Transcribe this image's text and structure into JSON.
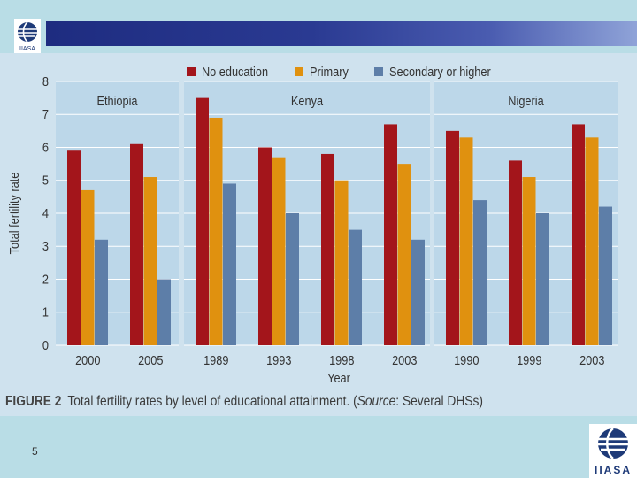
{
  "header": {
    "logo_icon": "iiasa-globe-icon",
    "colors": {
      "bar_start": "#1e2c80",
      "bar_end": "#8fa3d8",
      "background": "#b9dde6"
    }
  },
  "figure": {
    "label": "FIGURE 2",
    "caption_main": "Total fertility rates by level of educational attainment. (",
    "caption_source_label": "Source",
    "caption_source_rest": ": Several DHSs)"
  },
  "chart_data": {
    "type": "bar",
    "ylabel": "Total fertility rate",
    "xlabel": "Year",
    "ylim": [
      0,
      8
    ],
    "yticks": [
      "0",
      "1",
      "2",
      "3",
      "4",
      "5",
      "6",
      "7",
      "8"
    ],
    "legend": [
      {
        "name": "No education",
        "color": "#a3151b"
      },
      {
        "name": "Primary",
        "color": "#e0910f"
      },
      {
        "name": "Secondary or higher",
        "color": "#5d7ea8"
      }
    ],
    "panels": [
      {
        "country": "Ethiopia",
        "categories": [
          "2000",
          "2005"
        ],
        "series": [
          {
            "name": "No education",
            "values": [
              5.9,
              6.1
            ]
          },
          {
            "name": "Primary",
            "values": [
              4.7,
              5.1
            ]
          },
          {
            "name": "Secondary or higher",
            "values": [
              3.2,
              2.0
            ]
          }
        ]
      },
      {
        "country": "Kenya",
        "categories": [
          "1989",
          "1993",
          "1998",
          "2003"
        ],
        "series": [
          {
            "name": "No education",
            "values": [
              7.5,
              6.0,
              5.8,
              6.7
            ]
          },
          {
            "name": "Primary",
            "values": [
              6.9,
              5.7,
              5.0,
              5.5
            ]
          },
          {
            "name": "Secondary or higher",
            "values": [
              4.9,
              4.0,
              3.5,
              3.2
            ]
          }
        ]
      },
      {
        "country": "Nigeria",
        "categories": [
          "1990",
          "1999",
          "2003"
        ],
        "series": [
          {
            "name": "No education",
            "values": [
              6.5,
              5.6,
              6.7
            ]
          },
          {
            "name": "Primary",
            "values": [
              6.3,
              5.1,
              6.3
            ]
          },
          {
            "name": "Secondary or higher",
            "values": [
              4.4,
              4.0,
              4.2
            ]
          }
        ]
      }
    ]
  },
  "footer": {
    "page_number": "5",
    "logo_text": "IIASA",
    "logo_icon": "iiasa-globe-icon"
  }
}
